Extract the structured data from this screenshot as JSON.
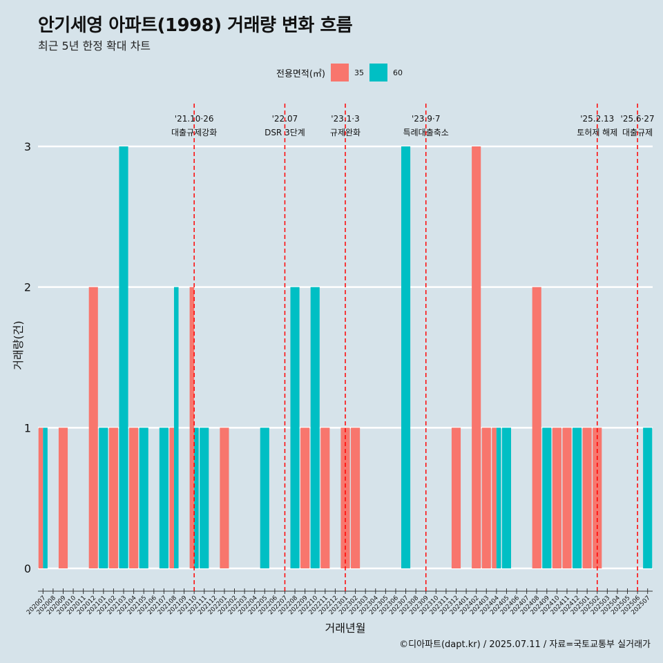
{
  "title": "안기세영 아파트(1998) 거래량 변화 흐름",
  "subtitle": "최근 5년 한정 확대 차트",
  "legend": {
    "title": "전용면적(㎡)",
    "items": [
      {
        "label": "35",
        "color": "#f8766d"
      },
      {
        "label": "60",
        "color": "#00bfc4"
      }
    ]
  },
  "caption": "©디아파트(dapt.kr) / 2025.07.11 / 자료=국토교통부 실거래가",
  "chart_data": {
    "type": "bar",
    "xlabel": "거래년월",
    "ylabel": "거래량(건)",
    "ylim": [
      0,
      3
    ],
    "yticks": [
      0,
      1,
      2,
      3
    ],
    "categories": [
      "202007",
      "202008",
      "202009",
      "202010",
      "202011",
      "202012",
      "202101",
      "202102",
      "202103",
      "202104",
      "202105",
      "202106",
      "202107",
      "202108",
      "202109",
      "202110",
      "202111",
      "202112",
      "202201",
      "202202",
      "202203",
      "202204",
      "202205",
      "202206",
      "202207",
      "202208",
      "202209",
      "202210",
      "202211",
      "202212",
      "202301",
      "202302",
      "202303",
      "202304",
      "202305",
      "202306",
      "202307",
      "202308",
      "202309",
      "202310",
      "202311",
      "202312",
      "202401",
      "202402",
      "202403",
      "202404",
      "202405",
      "202406",
      "202407",
      "202408",
      "202409",
      "202410",
      "202411",
      "202412",
      "202501",
      "202502",
      "202503",
      "202504",
      "202505",
      "202506",
      "202507"
    ],
    "series": [
      {
        "name": "35",
        "color": "#f8766d",
        "values": [
          1,
          0,
          1,
          0,
          0,
          2,
          0,
          1,
          0,
          1,
          0,
          0,
          0,
          1,
          0,
          2,
          0,
          0,
          1,
          0,
          0,
          0,
          0,
          0,
          0,
          0,
          1,
          0,
          1,
          0,
          1,
          1,
          0,
          0,
          0,
          0,
          0,
          0,
          0,
          0,
          0,
          1,
          0,
          3,
          1,
          1,
          0,
          0,
          0,
          2,
          0,
          1,
          1,
          0,
          1,
          1,
          0,
          0,
          0,
          0,
          0
        ]
      },
      {
        "name": "60",
        "color": "#00bfc4",
        "values": [
          1,
          0,
          0,
          0,
          0,
          0,
          1,
          0,
          3,
          0,
          1,
          0,
          1,
          2,
          0,
          1,
          1,
          0,
          0,
          0,
          0,
          0,
          1,
          0,
          0,
          2,
          0,
          2,
          0,
          0,
          0,
          0,
          0,
          0,
          0,
          0,
          3,
          0,
          0,
          0,
          0,
          0,
          0,
          0,
          0,
          1,
          1,
          0,
          0,
          0,
          1,
          0,
          0,
          1,
          0,
          0,
          0,
          0,
          0,
          0,
          1
        ]
      }
    ],
    "events": [
      {
        "date": "'21.10·26",
        "label": "대출규제강화",
        "category": "202110"
      },
      {
        "date": "'22.07",
        "label": "DSR 3단계",
        "category": "202207"
      },
      {
        "date": "'23.1·3",
        "label": "규제완화",
        "category": "202301"
      },
      {
        "date": "'23.9·7",
        "label": "특례대출축소",
        "category": "202309"
      },
      {
        "date": "'25.2.13",
        "label": "토허제 해제",
        "category": "202502"
      },
      {
        "date": "'25.6·27",
        "label": "대출규제",
        "category": "202506"
      }
    ]
  }
}
